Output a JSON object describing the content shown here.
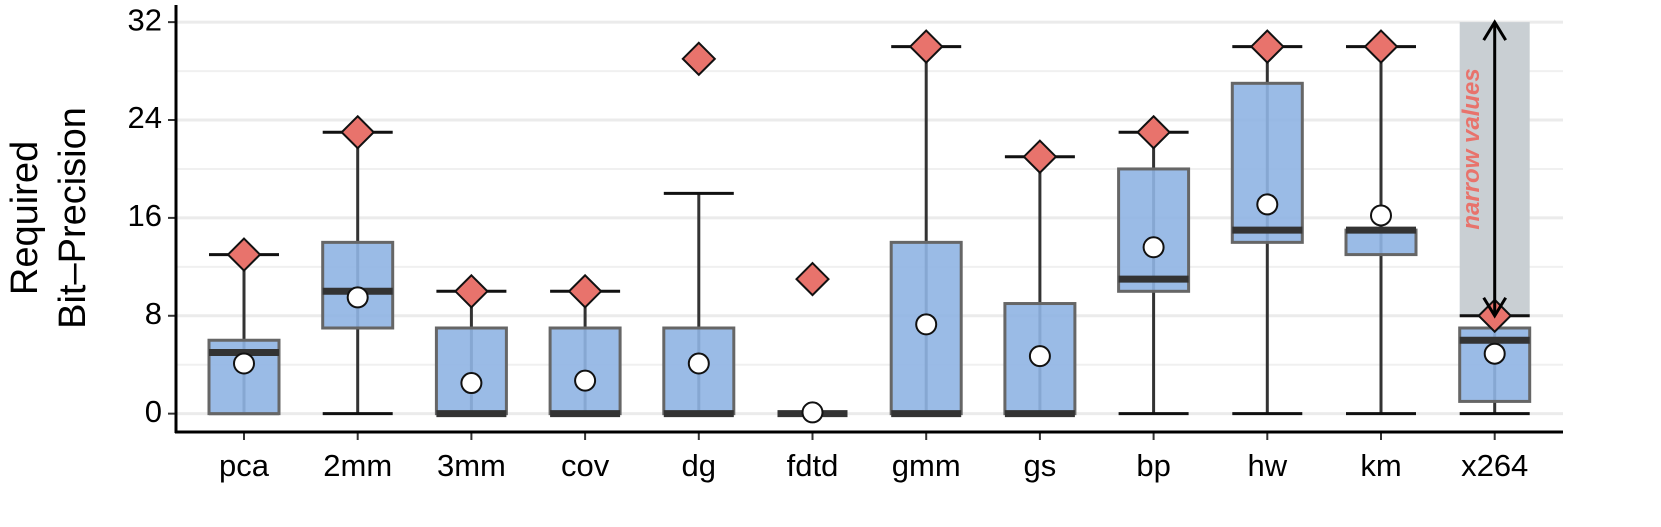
{
  "chart_data": {
    "type": "box",
    "ylabel": [
      "Required",
      "Bit–Precision"
    ],
    "categories": [
      "pca",
      "2mm",
      "3mm",
      "cov",
      "dg",
      "fdtd",
      "gmm",
      "gs",
      "bp",
      "hw",
      "km",
      "x264"
    ],
    "stats": [
      {
        "low": 0,
        "q1": 0,
        "median": 5,
        "q3": 6,
        "high": 13,
        "mean": 4.1,
        "max": 13
      },
      {
        "low": 0,
        "q1": 7,
        "median": 10,
        "q3": 14,
        "high": 23,
        "mean": 9.5,
        "max": 23
      },
      {
        "low": 0,
        "q1": 0,
        "median": 0,
        "q3": 7,
        "high": 10,
        "mean": 2.5,
        "max": 10
      },
      {
        "low": 0,
        "q1": 0,
        "median": 0,
        "q3": 7,
        "high": 10,
        "mean": 2.7,
        "max": 10
      },
      {
        "low": 0,
        "q1": 0,
        "median": 0,
        "q3": 7,
        "high": 18,
        "mean": 4.1,
        "max": 29
      },
      {
        "low": 0,
        "q1": 0,
        "median": 0,
        "q3": 0,
        "high": 0,
        "mean": 0.1,
        "max": 11
      },
      {
        "low": 0,
        "q1": 0,
        "median": 0,
        "q3": 14,
        "high": 30,
        "mean": 7.3,
        "max": 30
      },
      {
        "low": 0,
        "q1": 0,
        "median": 0,
        "q3": 9,
        "high": 21,
        "mean": 4.7,
        "max": 21
      },
      {
        "low": 0,
        "q1": 10,
        "median": 11,
        "q3": 20,
        "high": 23,
        "mean": 13.6,
        "max": 23
      },
      {
        "low": 0,
        "q1": 14,
        "median": 15,
        "q3": 27,
        "high": 30,
        "mean": 17.1,
        "max": 30
      },
      {
        "low": 0,
        "q1": 13,
        "median": 15,
        "q3": 15,
        "high": 30,
        "mean": 16.2,
        "max": 30
      },
      {
        "low": 0,
        "q1": 1,
        "median": 6,
        "q3": 7,
        "high": 8,
        "mean": 4.9,
        "max": 8
      }
    ],
    "box_color": "#8fb4e3",
    "max_color": "#e8736c",
    "mean_color": "#ffffff",
    "ylim": [
      -1.5,
      33.4
    ],
    "yticks": [
      0,
      8,
      16,
      24,
      32
    ],
    "minor_yticks": [
      4,
      12,
      20,
      28
    ],
    "grid": true,
    "annotation": {
      "text": "narrow values",
      "category": "x264",
      "range": [
        8,
        32
      ],
      "color": "#e8736c",
      "band_color": "#c9cfd3"
    }
  }
}
